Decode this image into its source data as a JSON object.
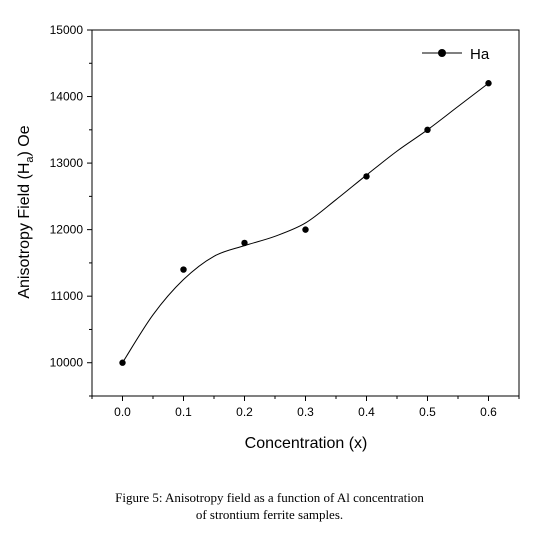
{
  "chart_data": {
    "type": "scatter",
    "title": "",
    "xlabel": "Concentration (x)",
    "ylabel_main": "Anisotropy Field (H",
    "ylabel_sub": "a",
    "ylabel_tail": ") Oe",
    "xlim": [
      -0.05,
      0.65
    ],
    "ylim": [
      9500,
      15000
    ],
    "x_ticks": [
      "0.0",
      "0.1",
      "0.2",
      "0.3",
      "0.4",
      "0.5",
      "0.6"
    ],
    "y_ticks": [
      "10000",
      "11000",
      "12000",
      "13000",
      "14000",
      "15000"
    ],
    "x_tick_values": [
      0.0,
      0.1,
      0.2,
      0.3,
      0.4,
      0.5,
      0.6
    ],
    "y_tick_values": [
      10000,
      11000,
      12000,
      13000,
      14000,
      15000
    ],
    "legend_position": "top-right",
    "series": [
      {
        "name": "Ha",
        "x": [
          0.0,
          0.1,
          0.2,
          0.3,
          0.4,
          0.5,
          0.6
        ],
        "y": [
          10000,
          11400,
          11800,
          12000,
          12800,
          13500,
          14200
        ],
        "fit_curve": {
          "x": [
            0.0,
            0.05,
            0.1,
            0.15,
            0.2,
            0.25,
            0.3,
            0.35,
            0.4,
            0.45,
            0.5,
            0.55,
            0.6
          ],
          "y": [
            10000,
            10720,
            11250,
            11600,
            11760,
            11900,
            12100,
            12450,
            12820,
            13180,
            13500,
            13850,
            14200
          ]
        }
      }
    ]
  },
  "caption": {
    "line1": "Figure 5: Anisotropy field as a function of Al concentration",
    "line2": "of strontium ferrite samples."
  }
}
